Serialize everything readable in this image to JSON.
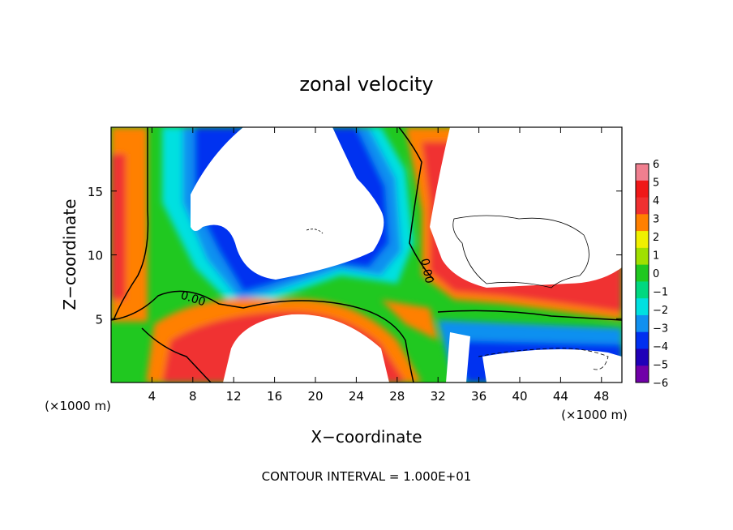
{
  "chart_data": {
    "type": "heatmap",
    "title": "zonal velocity",
    "xlabel": "X−coordinate",
    "ylabel": "Z−coordinate",
    "x_unit_left": "(×1000 m)",
    "x_unit_right": "(×1000 m)",
    "xlim": [
      0,
      50
    ],
    "ylim": [
      0,
      20
    ],
    "x_ticks": [
      4,
      8,
      12,
      16,
      20,
      24,
      28,
      32,
      36,
      40,
      44,
      48
    ],
    "x_tick_labels": [
      "4",
      "8",
      "12",
      "16",
      "20",
      "24",
      "28",
      "32",
      "36",
      "40",
      "44",
      "48"
    ],
    "y_ticks": [
      5,
      10,
      15
    ],
    "y_tick_labels": [
      "5",
      "10",
      "15"
    ],
    "colorbar_ticks": [
      6,
      5,
      4,
      3,
      2,
      1,
      0,
      -1,
      -2,
      -3,
      -4,
      -5,
      -6
    ],
    "colorbar_tick_labels": [
      "6",
      "5",
      "4",
      "3",
      "2",
      "1",
      "0",
      "−1",
      "−2",
      "−3",
      "−4",
      "−5",
      "−6"
    ],
    "colorbar_colors": [
      "#f07f8f",
      "#f01818",
      "#f03030",
      "#ff8000",
      "#f0f000",
      "#a0e000",
      "#20c820",
      "#00d880",
      "#00e0e0",
      "#1090f0",
      "#0030f0",
      "#2000b8",
      "#7000a8"
    ],
    "contour_labels": [
      "0.00",
      "0.00"
    ],
    "footnote": "CONTOUR INTERVAL = 1.000E+01",
    "grid": false
  }
}
